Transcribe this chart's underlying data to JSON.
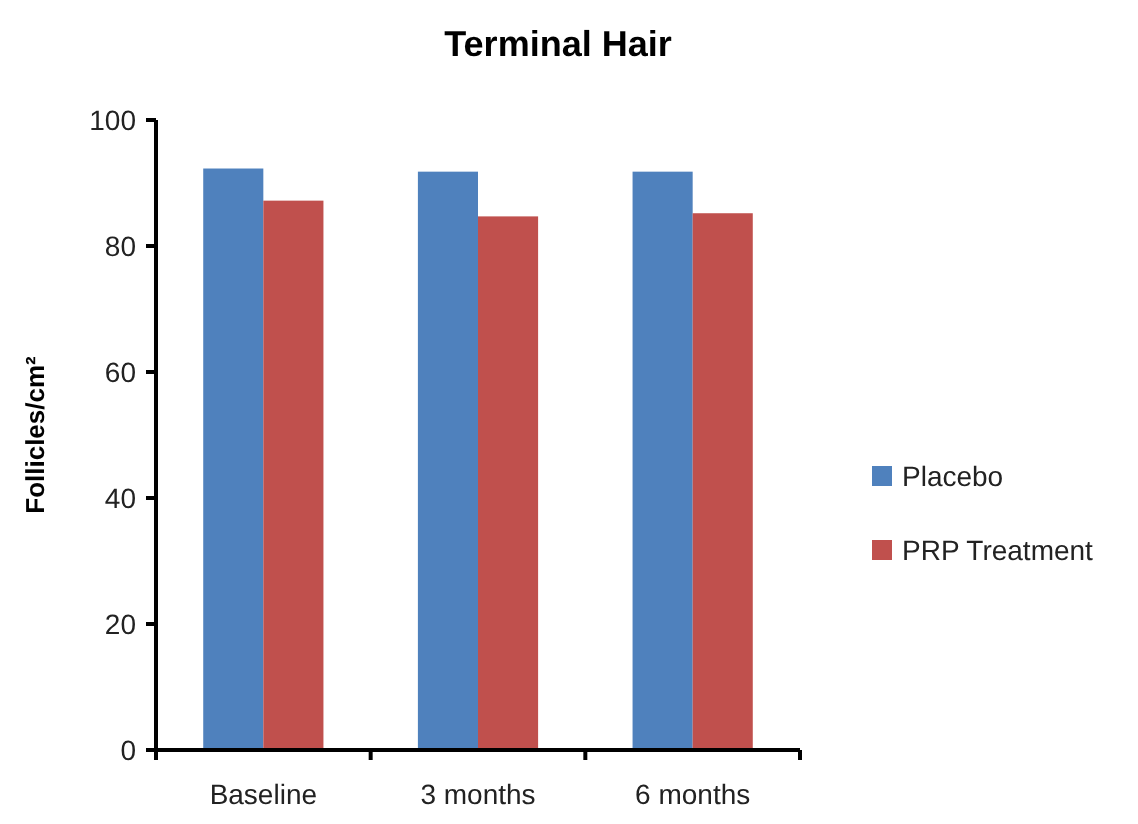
{
  "chart_data": {
    "type": "bar",
    "title": "Terminal Hair",
    "ylabel": "Follicles/cm²",
    "categories": [
      "Baseline",
      "3 months",
      "6 months"
    ],
    "series": [
      {
        "name": "Placebo",
        "color": "#4f81bd",
        "values": [
          92.3,
          91.8,
          91.8
        ]
      },
      {
        "name": "PRP Treatment",
        "color": "#c0504d",
        "values": [
          87.2,
          84.7,
          85.2
        ]
      }
    ],
    "ylim": [
      0,
      100
    ],
    "yticks": [
      0,
      20,
      40,
      60,
      80,
      100
    ],
    "grid": false,
    "legend": "right"
  }
}
